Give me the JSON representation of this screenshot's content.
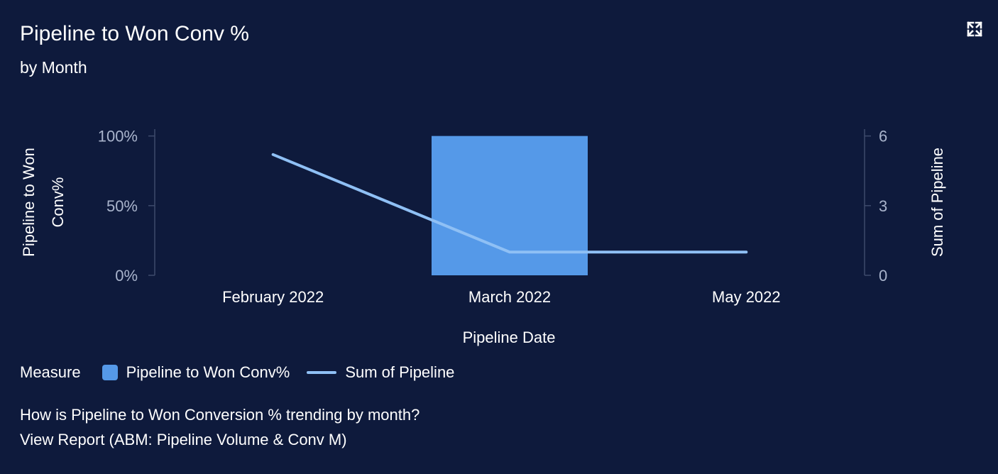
{
  "header": {
    "title": "Pipeline to Won Conv %",
    "subtitle": "by Month"
  },
  "icons": {
    "expand": "expand-icon"
  },
  "colors": {
    "background": "#0e1a3c",
    "bar": "#5599e8",
    "line": "#8fc0f5",
    "axis": "#3d4a6b",
    "tick_text": "#a9b4cc",
    "text": "#ffffff"
  },
  "chart_data": {
    "type": "bar",
    "title": "Pipeline to Won Conv %",
    "subtitle": "by Month",
    "categories": [
      "February 2022",
      "March 2022",
      "May 2022"
    ],
    "xlabel": "Pipeline Date",
    "series": [
      {
        "name": "Pipeline to Won Conv%",
        "type": "bar",
        "axis": "left",
        "values": [
          0,
          100,
          0
        ]
      },
      {
        "name": "Sum of Pipeline",
        "type": "line",
        "axis": "right",
        "values": [
          5.2,
          1,
          1
        ]
      }
    ],
    "y_left": {
      "label": "Pipeline to Won Conv%",
      "range": [
        0,
        110
      ],
      "ticks": [
        0,
        50,
        100
      ],
      "tick_labels": [
        "0%",
        "50%",
        "100%"
      ]
    },
    "y_right": {
      "label": "Sum of Pipeline",
      "range": [
        0,
        6.6
      ],
      "ticks": [
        0,
        3,
        6
      ],
      "tick_labels": [
        "0",
        "3",
        "6"
      ]
    },
    "grid": false,
    "legend": {
      "title": "Measure",
      "position": "bottom-left",
      "entries": [
        "Pipeline to Won Conv%",
        "Sum of Pipeline"
      ]
    }
  },
  "footer": {
    "question": "How is Pipeline to Won Conversion % trending by month?",
    "report_link": "View Report (ABM: Pipeline Volume & Conv M)"
  }
}
